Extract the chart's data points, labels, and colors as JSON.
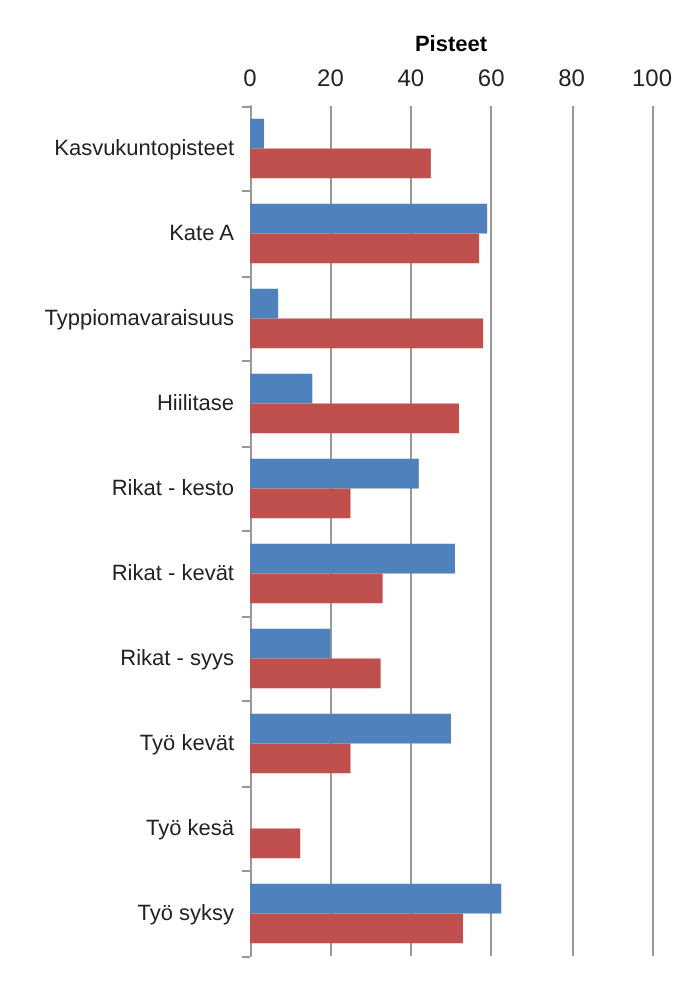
{
  "chart_data": {
    "type": "bar",
    "orientation": "horizontal",
    "xlabel": "Pisteet",
    "categories": [
      "Kasvukuntopisteet",
      "Kate A",
      "Typpiomavaraisuus",
      "Hiilitase",
      "Rikat - kesto",
      "Rikat - kevät",
      "Rikat - syys",
      "Työ kevät",
      "Työ kesä",
      "Työ syksy"
    ],
    "series": [
      {
        "color": "#4f81bd",
        "values": [
          3.5,
          59,
          7,
          15.5,
          42,
          51,
          20,
          50,
          null,
          62.5
        ]
      },
      {
        "color": "#c0504d",
        "values": [
          45,
          57,
          58,
          52,
          25,
          33,
          32.5,
          25,
          12.5,
          53
        ]
      }
    ],
    "xlim": [
      0,
      100
    ],
    "xticks": [
      0,
      20,
      40,
      60,
      80,
      100
    ],
    "grid": "x"
  }
}
